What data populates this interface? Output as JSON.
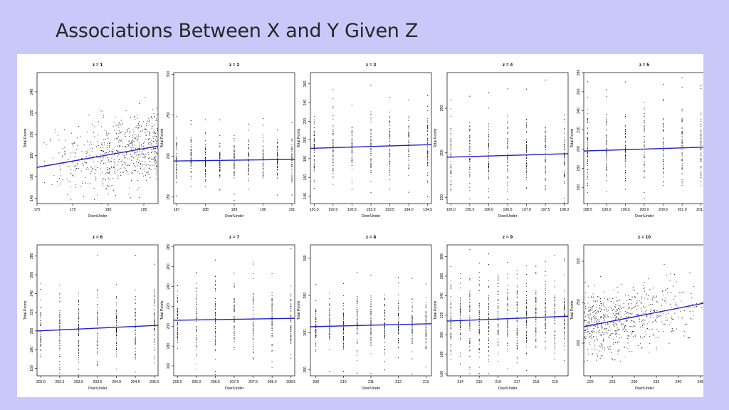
{
  "slide": {
    "title": "Associations Between X and Y Given Z"
  },
  "colors": {
    "background": "#c9c9f9",
    "regression_line": "#1f1fcc",
    "points": "#000000"
  },
  "chart_data": [
    {
      "type": "scatter",
      "title": "z = 1",
      "xlabel": "Over/Under",
      "ylabel": "Total Points",
      "xlim": [
        170,
        187
      ],
      "ylim": [
        135,
        258
      ],
      "xticks": [
        "170",
        "175",
        "180",
        "185"
      ],
      "xtick_values": [
        170,
        175,
        180,
        185
      ],
      "yticks": [
        "140",
        "160",
        "180",
        "200",
        "220",
        "240"
      ],
      "ytick_values": [
        140,
        160,
        180,
        200,
        220,
        240
      ],
      "x_levels": [],
      "point_style": "continuous",
      "regression": {
        "x": [
          170,
          187
        ],
        "y": [
          169,
          189
        ]
      },
      "y_center": "182",
      "y_spread": "17"
    },
    {
      "type": "scatter",
      "title": "z = 2",
      "xlabel": "Over/Under",
      "ylabel": "Total Points",
      "xlim": [
        186.9,
        191.1
      ],
      "ylim": [
        142,
        302
      ],
      "xticks": [
        "187",
        "188",
        "189",
        "190",
        "191"
      ],
      "xtick_values": [
        187,
        188,
        189,
        190,
        191
      ],
      "yticks": [
        "150",
        "200",
        "250",
        "300"
      ],
      "ytick_values": [
        150,
        200,
        250,
        300
      ],
      "x_levels": [
        187,
        187.5,
        188,
        188.5,
        189,
        189.5,
        190,
        190.5,
        191
      ],
      "point_style": "discrete",
      "regression": {
        "x": [
          186.9,
          191.1
        ],
        "y": [
          194,
          196
        ]
      },
      "y_center": "195",
      "y_spread": "13"
    },
    {
      "type": "scatter",
      "title": "z = 3",
      "xlabel": "Over/Under",
      "ylabel": "Total Points",
      "xlim": [
        191.4,
        194.6
      ],
      "ylim": [
        132,
        272
      ],
      "xticks": [
        "191.5",
        "192.0",
        "192.5",
        "193.0",
        "193.5",
        "194.0",
        "194.5"
      ],
      "xtick_values": [
        191.5,
        192.0,
        192.5,
        193.0,
        193.5,
        194.0,
        194.5
      ],
      "yticks": [
        "140",
        "160",
        "180",
        "200",
        "220",
        "240",
        "260"
      ],
      "ytick_values": [
        140,
        160,
        180,
        200,
        220,
        240,
        260
      ],
      "x_levels": [
        191.5,
        192,
        192.5,
        193,
        193.5,
        194,
        194.5
      ],
      "point_style": "discrete",
      "regression": {
        "x": [
          191.4,
          194.6
        ],
        "y": [
          191,
          195
        ]
      },
      "y_center": "193",
      "y_spread": "17"
    },
    {
      "type": "scatter",
      "title": "z = 4",
      "xlabel": "Over/Under",
      "ylabel": "Total Points",
      "xlim": [
        194.9,
        198.1
      ],
      "ylim": [
        143,
        290
      ],
      "xticks": [
        "195.0",
        "195.5",
        "196.0",
        "196.5",
        "197.0",
        "197.5",
        "198.0"
      ],
      "xtick_values": [
        195.0,
        195.5,
        196.0,
        196.5,
        197.0,
        197.5,
        198.0
      ],
      "yticks": [
        "150",
        "200",
        "250"
      ],
      "ytick_values": [
        150,
        200,
        250
      ],
      "x_levels": [
        195,
        195.5,
        196,
        196.5,
        197,
        197.5,
        198
      ],
      "point_style": "discrete",
      "regression": {
        "x": [
          194.9,
          198.1
        ],
        "y": [
          195,
          199
        ]
      },
      "y_center": "197",
      "y_spread": "20"
    },
    {
      "type": "scatter",
      "title": "z = 5",
      "xlabel": "Over/Under",
      "ylabel": "Total Points",
      "xlim": [
        198.4,
        201.6
      ],
      "ylim": [
        143,
        280
      ],
      "xticks": [
        "198.5",
        "199.0",
        "199.5",
        "200.0",
        "200.5",
        "201.0",
        "201.5"
      ],
      "xtick_values": [
        198.5,
        199.0,
        199.5,
        200.0,
        200.5,
        201.0,
        201.5
      ],
      "yticks": [
        "160",
        "180",
        "200",
        "220",
        "240",
        "260",
        "280"
      ],
      "ytick_values": [
        160,
        180,
        200,
        220,
        240,
        260,
        280
      ],
      "x_levels": [
        198.5,
        199,
        199.5,
        200,
        200.5,
        201,
        201.5
      ],
      "point_style": "discrete",
      "regression": {
        "x": [
          198.4,
          201.6
        ],
        "y": [
          198,
          202
        ]
      },
      "y_center": "200",
      "y_spread": "20"
    },
    {
      "type": "scatter",
      "title": "z = 6",
      "xlabel": "Over/Under",
      "ylabel": "Total Points",
      "xlim": [
        201.9,
        205.1
      ],
      "ylim": [
        152,
        292
      ],
      "xticks": [
        "202.0",
        "202.5",
        "203.0",
        "203.5",
        "204.0",
        "204.5",
        "205.0"
      ],
      "xtick_values": [
        202.0,
        202.5,
        203.0,
        203.5,
        204.0,
        204.5,
        205.0
      ],
      "yticks": [
        "160",
        "180",
        "200",
        "220",
        "240",
        "260",
        "280"
      ],
      "ytick_values": [
        160,
        180,
        200,
        220,
        240,
        260,
        280
      ],
      "x_levels": [
        202,
        202.5,
        203,
        203.5,
        204,
        204.5,
        205
      ],
      "point_style": "discrete",
      "regression": {
        "x": [
          201.9,
          205.1
        ],
        "y": [
          200,
          206
        ]
      },
      "y_center": "203",
      "y_spread": "20"
    },
    {
      "type": "scatter",
      "title": "z = 7",
      "xlabel": "Over/Under",
      "ylabel": "Total Points",
      "xlim": [
        205.4,
        208.6
      ],
      "ylim": [
        150,
        282
      ],
      "xticks": [
        "205.5",
        "206.0",
        "206.5",
        "207.0",
        "207.5",
        "208.0",
        "208.5"
      ],
      "xtick_values": [
        205.5,
        206.0,
        206.5,
        207.0,
        207.5,
        208.0,
        208.5
      ],
      "yticks": [
        "160",
        "180",
        "200",
        "220",
        "240",
        "260",
        "280"
      ],
      "ytick_values": [
        160,
        180,
        200,
        220,
        240,
        260,
        280
      ],
      "x_levels": [
        205.5,
        206,
        206.5,
        207,
        207.5,
        208,
        208.5
      ],
      "point_style": "discrete",
      "regression": {
        "x": [
          205.4,
          208.6
        ],
        "y": [
          206,
          208
        ]
      },
      "y_center": "207",
      "y_spread": "20"
    },
    {
      "type": "scatter",
      "title": "z = 8",
      "xlabel": "Over/Under",
      "ylabel": "Total Points",
      "xlim": [
        208.8,
        213.2
      ],
      "ylim": [
        142,
        318
      ],
      "xticks": [
        "209",
        "210",
        "211",
        "212",
        "213"
      ],
      "xtick_values": [
        209,
        210,
        211,
        212,
        213
      ],
      "yticks": [
        "150",
        "200",
        "250",
        "300"
      ],
      "ytick_values": [
        150,
        200,
        250,
        300
      ],
      "x_levels": [
        209,
        209.5,
        210,
        210.5,
        211,
        211.5,
        212,
        212.5,
        213
      ],
      "point_style": "discrete",
      "regression": {
        "x": [
          208.8,
          213.2
        ],
        "y": [
          208,
          212
        ]
      },
      "y_center": "210",
      "y_spread": "17"
    },
    {
      "type": "scatter",
      "title": "z = 9",
      "xlabel": "Over/Under",
      "ylabel": "Total Points",
      "xlim": [
        213.3,
        219.7
      ],
      "ylim": [
        158,
        292
      ],
      "xticks": [
        "214",
        "215",
        "216",
        "217",
        "218",
        "219"
      ],
      "xtick_values": [
        214,
        215,
        216,
        217,
        218,
        219
      ],
      "yticks": [
        "160",
        "180",
        "200",
        "220",
        "240",
        "260",
        "280"
      ],
      "ytick_values": [
        160,
        180,
        200,
        220,
        240,
        260,
        280
      ],
      "x_levels": [
        213.5,
        214,
        214.5,
        215,
        215.5,
        216,
        216.5,
        217,
        217.5,
        218,
        218.5,
        219,
        219.5
      ],
      "point_style": "discrete",
      "regression": {
        "x": [
          213.3,
          219.7
        ],
        "y": [
          214,
          219
        ]
      },
      "y_center": "216",
      "y_spread": "20"
    },
    {
      "type": "scatter",
      "title": "z = 10",
      "xlabel": "Over/Under",
      "ylabel": "Total Points",
      "xlim": [
        218.5,
        246
      ],
      "ylim": [
        160,
        320
      ],
      "xticks": [
        "220",
        "225",
        "230",
        "235",
        "240",
        "245"
      ],
      "xtick_values": [
        220,
        225,
        230,
        235,
        240,
        245
      ],
      "yticks": [
        "200",
        "250",
        "300"
      ],
      "ytick_values": [
        200,
        250,
        300
      ],
      "x_levels": [],
      "point_style": "continuous",
      "regression": {
        "x": [
          218.5,
          246
        ],
        "y": [
          220,
          249
        ]
      },
      "y_center": "225",
      "y_spread": "20"
    }
  ]
}
